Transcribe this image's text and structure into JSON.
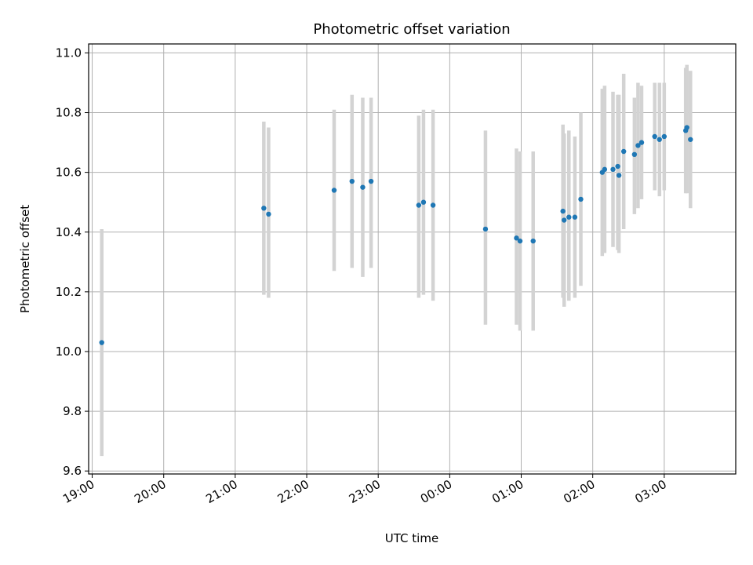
{
  "chart_data": {
    "type": "scatter",
    "title": "Photometric offset variation",
    "xlabel": "UTC time",
    "ylabel": "Photometric offset",
    "grid": true,
    "xlim_hours": [
      18.95,
      28.0
    ],
    "ylim": [
      9.59,
      11.03
    ],
    "x_ticks": [
      {
        "label": "19:00",
        "h": 19
      },
      {
        "label": "20:00",
        "h": 20
      },
      {
        "label": "21:00",
        "h": 21
      },
      {
        "label": "22:00",
        "h": 22
      },
      {
        "label": "23:00",
        "h": 23
      },
      {
        "label": "00:00",
        "h": 24
      },
      {
        "label": "01:00",
        "h": 25
      },
      {
        "label": "02:00",
        "h": 26
      },
      {
        "label": "03:00",
        "h": 27
      }
    ],
    "y_ticks": [
      "9.6",
      "9.8",
      "10.0",
      "10.2",
      "10.4",
      "10.6",
      "10.8",
      "11.0"
    ],
    "colors": {
      "points": "#1f77b4",
      "errorbars": "#d3d3d3",
      "grid": "#b0b0b0"
    },
    "points": [
      {
        "t": "19:08",
        "y": 10.03,
        "ylo": 9.65,
        "yhi": 10.41
      },
      {
        "t": "21:24",
        "y": 10.48,
        "ylo": 10.19,
        "yhi": 10.77
      },
      {
        "t": "21:28",
        "y": 10.46,
        "ylo": 10.18,
        "yhi": 10.75
      },
      {
        "t": "22:23",
        "y": 10.54,
        "ylo": 10.27,
        "yhi": 10.81
      },
      {
        "t": "22:38",
        "y": 10.57,
        "ylo": 10.28,
        "yhi": 10.86
      },
      {
        "t": "22:47",
        "y": 10.55,
        "ylo": 10.25,
        "yhi": 10.85
      },
      {
        "t": "22:54",
        "y": 10.57,
        "ylo": 10.28,
        "yhi": 10.85
      },
      {
        "t": "23:34",
        "y": 10.49,
        "ylo": 10.18,
        "yhi": 10.79
      },
      {
        "t": "23:38",
        "y": 10.5,
        "ylo": 10.19,
        "yhi": 10.81
      },
      {
        "t": "23:46",
        "y": 10.49,
        "ylo": 10.17,
        "yhi": 10.81
      },
      {
        "t": "00:30",
        "y": 10.41,
        "ylo": 10.09,
        "yhi": 10.74
      },
      {
        "t": "00:56",
        "y": 10.38,
        "ylo": 10.09,
        "yhi": 10.68
      },
      {
        "t": "00:59",
        "y": 10.37,
        "ylo": 10.07,
        "yhi": 10.67
      },
      {
        "t": "01:10",
        "y": 10.37,
        "ylo": 10.07,
        "yhi": 10.67
      },
      {
        "t": "01:35",
        "y": 10.47,
        "ylo": 10.18,
        "yhi": 10.76
      },
      {
        "t": "01:36",
        "y": 10.44,
        "ylo": 10.15,
        "yhi": 10.73
      },
      {
        "t": "01:40",
        "y": 10.45,
        "ylo": 10.17,
        "yhi": 10.74
      },
      {
        "t": "01:45",
        "y": 10.45,
        "ylo": 10.18,
        "yhi": 10.72
      },
      {
        "t": "01:50",
        "y": 10.51,
        "ylo": 10.22,
        "yhi": 10.8
      },
      {
        "t": "02:08",
        "y": 10.6,
        "ylo": 10.32,
        "yhi": 10.88
      },
      {
        "t": "02:10",
        "y": 10.61,
        "ylo": 10.33,
        "yhi": 10.89
      },
      {
        "t": "02:17",
        "y": 10.61,
        "ylo": 10.35,
        "yhi": 10.87
      },
      {
        "t": "02:21",
        "y": 10.62,
        "ylo": 10.34,
        "yhi": 10.86
      },
      {
        "t": "02:22",
        "y": 10.59,
        "ylo": 10.33,
        "yhi": 10.86
      },
      {
        "t": "02:26",
        "y": 10.67,
        "ylo": 10.41,
        "yhi": 10.93
      },
      {
        "t": "02:35",
        "y": 10.66,
        "ylo": 10.46,
        "yhi": 10.85
      },
      {
        "t": "02:38",
        "y": 10.69,
        "ylo": 10.48,
        "yhi": 10.9
      },
      {
        "t": "02:41",
        "y": 10.7,
        "ylo": 10.51,
        "yhi": 10.89
      },
      {
        "t": "02:52",
        "y": 10.72,
        "ylo": 10.54,
        "yhi": 10.9
      },
      {
        "t": "02:56",
        "y": 10.71,
        "ylo": 10.52,
        "yhi": 10.9
      },
      {
        "t": "03:00",
        "y": 10.72,
        "ylo": 10.54,
        "yhi": 10.9
      },
      {
        "t": "03:18",
        "y": 10.74,
        "ylo": 10.53,
        "yhi": 10.95
      },
      {
        "t": "03:19",
        "y": 10.75,
        "ylo": 10.53,
        "yhi": 10.96
      },
      {
        "t": "03:22",
        "y": 10.71,
        "ylo": 10.48,
        "yhi": 10.94
      }
    ]
  }
}
